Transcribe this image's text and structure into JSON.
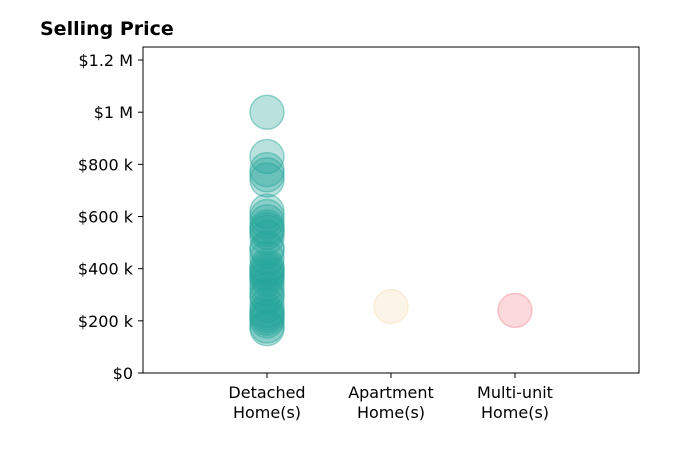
{
  "chart_data": {
    "type": "scatter",
    "title": "Selling Price",
    "xlabel": "",
    "ylabel": "",
    "categories": [
      {
        "lines": [
          "Detached",
          "Home(s)"
        ]
      },
      {
        "lines": [
          "Apartment",
          "Home(s)"
        ]
      },
      {
        "lines": [
          "Multi-unit",
          "Home(s)"
        ]
      }
    ],
    "ylim": [
      0,
      1250000
    ],
    "y_ticks": [
      {
        "value": 0,
        "label": "$0"
      },
      {
        "value": 200000,
        "label": "$200 k"
      },
      {
        "value": 400000,
        "label": "$400 k"
      },
      {
        "value": 600000,
        "label": "$600 k"
      },
      {
        "value": 800000,
        "label": "$800 k"
      },
      {
        "value": 1000000,
        "label": "$1 M"
      },
      {
        "value": 1200000,
        "label": "$1.2 M"
      }
    ],
    "grid": false,
    "series": [
      {
        "category": 0,
        "color": "#26a69a",
        "values": [
          1000000,
          830000,
          780000,
          760000,
          740000,
          620000,
          600000,
          580000,
          560000,
          550000,
          540000,
          520000,
          480000,
          470000,
          440000,
          410000,
          400000,
          390000,
          380000,
          370000,
          360000,
          340000,
          320000,
          300000,
          290000,
          260000,
          240000,
          230000,
          220000,
          210000,
          200000,
          180000,
          170000
        ]
      },
      {
        "category": 1,
        "color": "#f5deb3",
        "values": [
          255000
        ]
      },
      {
        "category": 2,
        "color": "#f48a95",
        "values": [
          240000
        ]
      }
    ]
  }
}
